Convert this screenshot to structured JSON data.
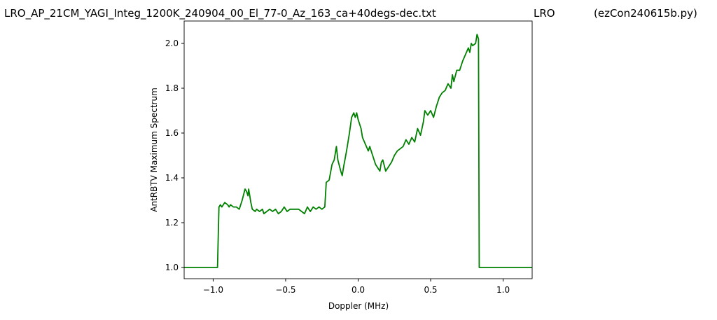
{
  "chart_data": {
    "type": "line",
    "titles": [
      "LRO_AP_21CM_YAGI_Integ_1200K_240904_00_El_77-0_Az_163_ca+40degs-dec.txt",
      "LRO",
      "(ezCon240615b.py)"
    ],
    "x_label": "Doppler (MHz)",
    "y_label": "AntRBTV Maximum Spectrum",
    "xlim": [
      -1.2,
      1.2
    ],
    "ylim": [
      0.95,
      2.1
    ],
    "xticks": [
      {
        "value": -1.0,
        "label": "−1.0"
      },
      {
        "value": -0.5,
        "label": "−0.5"
      },
      {
        "value": 0.0,
        "label": "0.0"
      },
      {
        "value": 0.5,
        "label": "0.5"
      },
      {
        "value": 1.0,
        "label": "1.0"
      }
    ],
    "yticks": [
      {
        "value": 1.0,
        "label": "1.0"
      },
      {
        "value": 1.2,
        "label": "1.2"
      },
      {
        "value": 1.4,
        "label": "1.4"
      },
      {
        "value": 1.6,
        "label": "1.6"
      },
      {
        "value": 1.8,
        "label": "1.8"
      },
      {
        "value": 2.0,
        "label": "2.0"
      }
    ],
    "grid": false,
    "color": "#008000",
    "x": [
      -1.2,
      -0.97,
      -0.96,
      -0.95,
      -0.94,
      -0.93,
      -0.92,
      -0.9,
      -0.89,
      -0.88,
      -0.86,
      -0.84,
      -0.82,
      -0.8,
      -0.78,
      -0.77,
      -0.76,
      -0.755,
      -0.74,
      -0.73,
      -0.71,
      -0.7,
      -0.68,
      -0.66,
      -0.65,
      -0.63,
      -0.61,
      -0.59,
      -0.57,
      -0.55,
      -0.53,
      -0.51,
      -0.49,
      -0.47,
      -0.45,
      -0.43,
      -0.41,
      -0.39,
      -0.37,
      -0.35,
      -0.33,
      -0.31,
      -0.29,
      -0.27,
      -0.25,
      -0.23,
      -0.22,
      -0.2,
      -0.18,
      -0.165,
      -0.15,
      -0.14,
      -0.12,
      -0.11,
      -0.1,
      -0.08,
      -0.06,
      -0.045,
      -0.03,
      -0.02,
      -0.01,
      0.0,
      0.02,
      0.03,
      0.05,
      0.07,
      0.08,
      0.1,
      0.12,
      0.14,
      0.15,
      0.16,
      0.17,
      0.19,
      0.21,
      0.23,
      0.25,
      0.27,
      0.29,
      0.31,
      0.33,
      0.35,
      0.37,
      0.39,
      0.41,
      0.43,
      0.45,
      0.46,
      0.48,
      0.5,
      0.52,
      0.54,
      0.56,
      0.58,
      0.6,
      0.62,
      0.64,
      0.65,
      0.66,
      0.68,
      0.7,
      0.72,
      0.74,
      0.76,
      0.77,
      0.78,
      0.79,
      0.81,
      0.82,
      0.83,
      0.835,
      1.2
    ],
    "values": [
      1.0,
      1.0,
      1.27,
      1.28,
      1.27,
      1.28,
      1.29,
      1.28,
      1.27,
      1.28,
      1.27,
      1.27,
      1.26,
      1.3,
      1.35,
      1.34,
      1.32,
      1.35,
      1.29,
      1.26,
      1.25,
      1.26,
      1.25,
      1.26,
      1.24,
      1.25,
      1.26,
      1.25,
      1.26,
      1.24,
      1.25,
      1.27,
      1.25,
      1.26,
      1.26,
      1.26,
      1.26,
      1.25,
      1.24,
      1.27,
      1.25,
      1.27,
      1.26,
      1.27,
      1.26,
      1.27,
      1.38,
      1.39,
      1.46,
      1.48,
      1.54,
      1.48,
      1.43,
      1.41,
      1.45,
      1.52,
      1.6,
      1.67,
      1.69,
      1.67,
      1.69,
      1.66,
      1.62,
      1.58,
      1.55,
      1.52,
      1.54,
      1.5,
      1.46,
      1.44,
      1.43,
      1.47,
      1.48,
      1.43,
      1.45,
      1.47,
      1.5,
      1.52,
      1.53,
      1.54,
      1.57,
      1.55,
      1.58,
      1.56,
      1.62,
      1.59,
      1.65,
      1.7,
      1.68,
      1.7,
      1.67,
      1.72,
      1.76,
      1.78,
      1.79,
      1.82,
      1.8,
      1.86,
      1.83,
      1.88,
      1.88,
      1.92,
      1.95,
      1.98,
      1.96,
      2.0,
      1.99,
      2.0,
      2.04,
      2.02,
      1.0,
      1.0
    ]
  }
}
